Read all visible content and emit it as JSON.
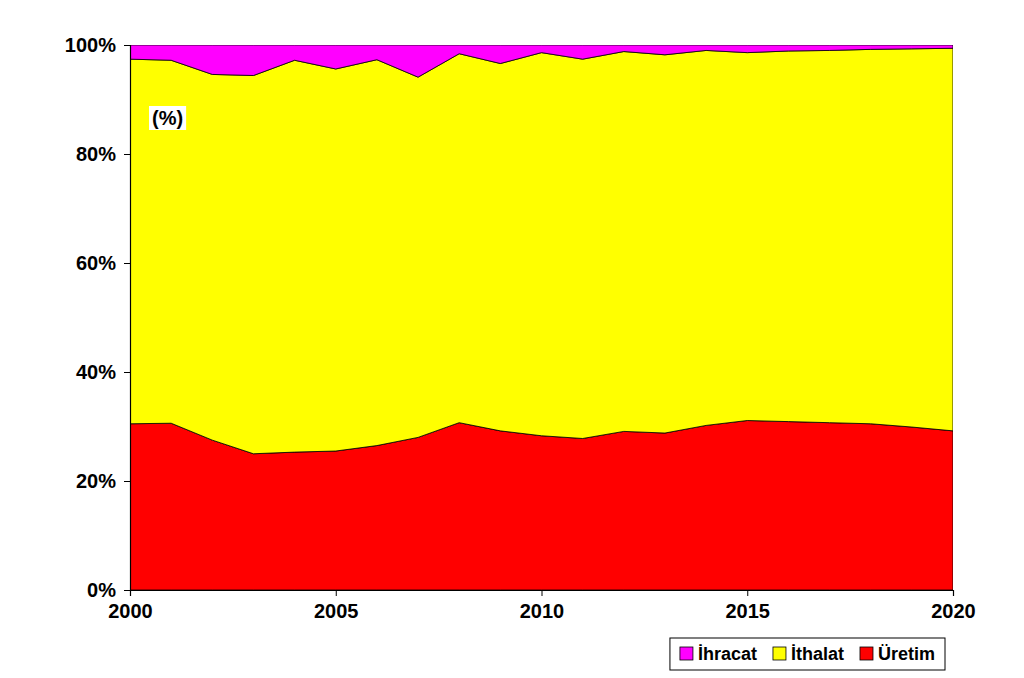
{
  "chart_data": {
    "type": "area",
    "stacked": true,
    "grid": false,
    "legend": "bottom",
    "annotations": [
      "(%)"
    ],
    "x": [
      2000,
      2001,
      2002,
      2003,
      2004,
      2005,
      2006,
      2007,
      2008,
      2009,
      2010,
      2011,
      2012,
      2013,
      2014,
      2015,
      2016,
      2017,
      2018,
      2019,
      2020
    ],
    "xlim": [
      2000,
      2020
    ],
    "xticks": [
      2000,
      2005,
      2010,
      2015,
      2020
    ],
    "ylim": [
      0,
      100
    ],
    "yticks": [
      {
        "value": 0,
        "label": "0%"
      },
      {
        "value": 20,
        "label": "20%"
      },
      {
        "value": 40,
        "label": "40%"
      },
      {
        "value": 60,
        "label": "60%"
      },
      {
        "value": 80,
        "label": "80%"
      },
      {
        "value": 100,
        "label": "100%"
      }
    ],
    "series": [
      {
        "name": "İhracat",
        "color": "#ff00ff",
        "values": [
          2.6,
          2.8,
          5.4,
          5.6,
          2.8,
          4.4,
          2.7,
          5.9,
          1.6,
          3.4,
          1.4,
          2.6,
          1.2,
          1.8,
          1.0,
          1.4,
          1.1,
          1.0,
          0.8,
          0.7,
          0.6
        ]
      },
      {
        "name": "İthalat",
        "color": "#ffff00",
        "values": [
          66.9,
          66.6,
          67.1,
          69.4,
          71.9,
          70.1,
          70.8,
          66.1,
          67.7,
          67.4,
          70.3,
          69.6,
          69.7,
          69.4,
          68.8,
          67.5,
          68.0,
          68.3,
          68.7,
          69.4,
          70.2
        ]
      },
      {
        "name": "Üretim",
        "color": "#ff0000",
        "values": [
          30.5,
          30.6,
          27.5,
          25.0,
          25.3,
          25.5,
          26.5,
          28.0,
          30.7,
          29.2,
          28.3,
          27.8,
          29.1,
          28.8,
          30.2,
          31.1,
          30.9,
          30.7,
          30.5,
          29.9,
          29.2
        ]
      }
    ]
  }
}
